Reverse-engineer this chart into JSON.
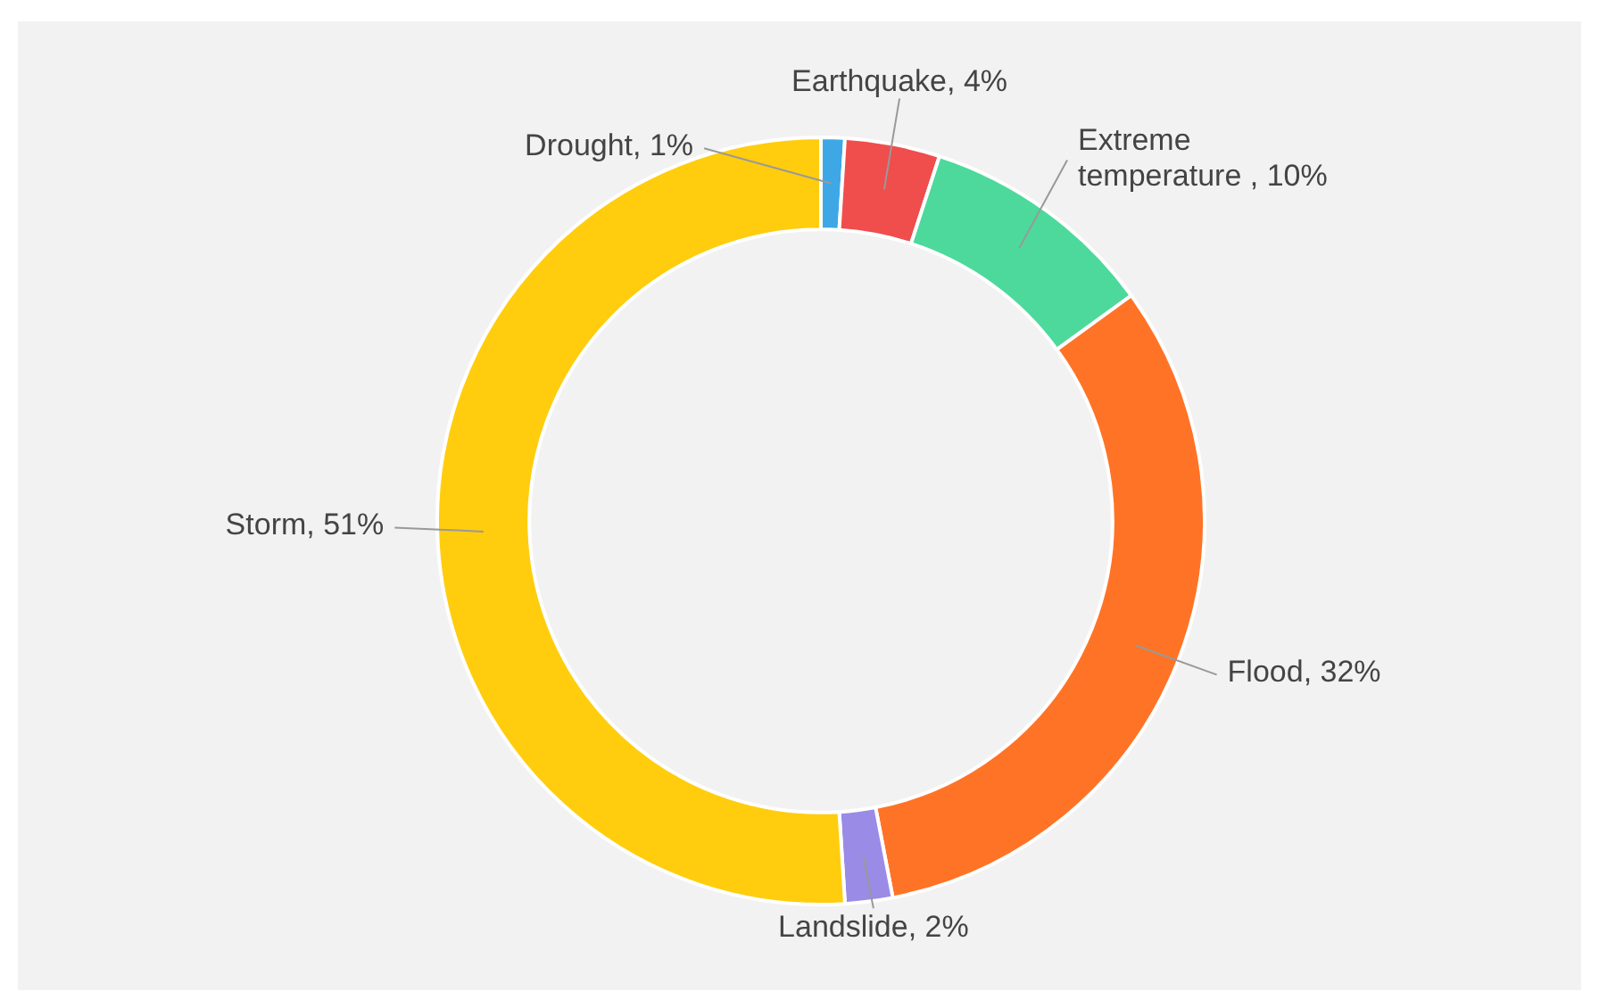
{
  "chart_data": {
    "type": "donut",
    "categories": [
      "Drought",
      "Earthquake",
      "Extreme temperature ",
      "Flood",
      "Landslide",
      "Storm"
    ],
    "values": [
      1,
      4,
      10,
      32,
      2,
      51
    ],
    "colors": [
      "#3ea8e6",
      "#f04d4d",
      "#4dd99b",
      "#ff7326",
      "#9a8be6",
      "#ffcd0d"
    ],
    "value_labels": [
      "1%",
      "4%",
      "10%",
      "32%",
      "2%",
      "51%"
    ]
  }
}
